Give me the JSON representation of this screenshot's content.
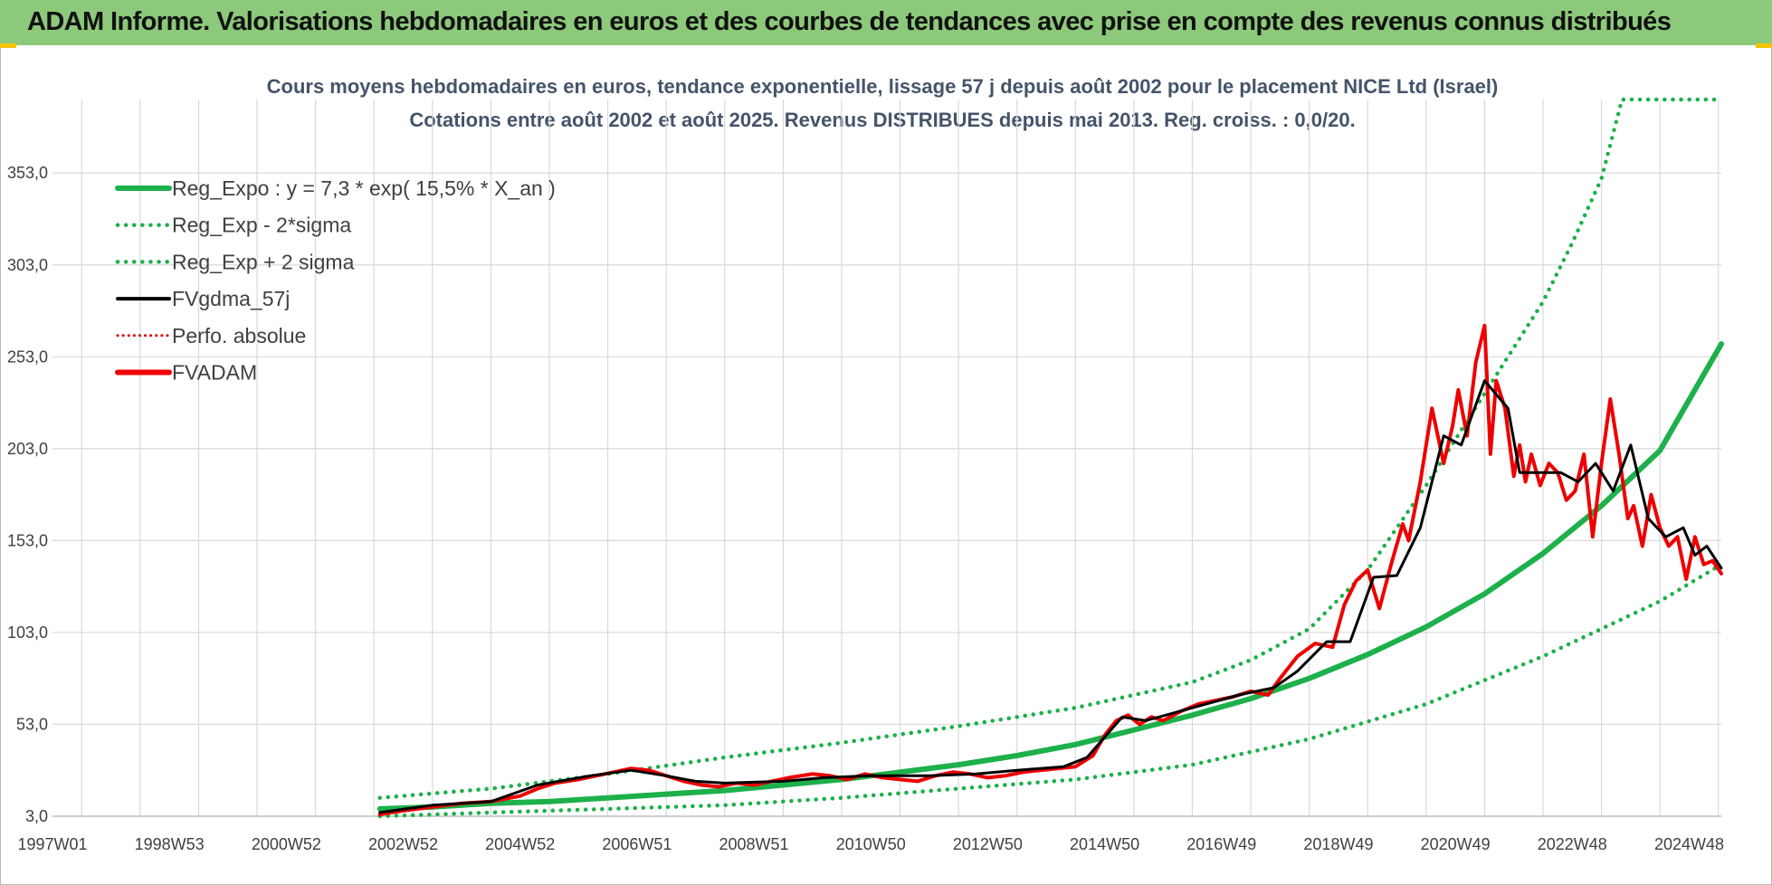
{
  "header": {
    "banner_text": "ADAM Informe. Valorisations hebdomadaires en euros et des courbes de tendances avec prise en compte des revenus connus distribués"
  },
  "colors": {
    "banner": "#8cc97a",
    "reg_expo": "#1db04b",
    "sigma_band": "#1db04b",
    "fvgdma": "#000000",
    "perfo": "#e00000",
    "fvadam": "#ee0000",
    "grid": "#d9d9d9"
  },
  "chart_data": {
    "type": "line",
    "title_line1": "Cours moyens hebdomadaires en euros, tendance exponentielle, lissage 57 j depuis août 2002 pour le placement NICE Ltd (Israel)",
    "title_line2": "Cotations entre août 2002 et août 2025. Revenus DISTRIBUES depuis mai 2013. Reg. croiss. : 0,0/20.",
    "ylim": [
      3,
      393
    ],
    "y_ticks": [
      "353,0",
      "303,0",
      "253,0",
      "203,0",
      "153,0",
      "103,0",
      "53,0",
      "3,0"
    ],
    "y_tick_values": [
      353,
      303,
      253,
      203,
      153,
      103,
      53,
      3
    ],
    "xlim": [
      1997.0,
      2025.55
    ],
    "x_ticks": [
      "1997W01",
      "1998W53",
      "2000W52",
      "2002W52",
      "2004W52",
      "2006W51",
      "2008W51",
      "2010W50",
      "2012W50",
      "2014W50",
      "2016W49",
      "2018W49",
      "2020W49",
      "2022W48",
      "2024W48"
    ],
    "x_tick_values": [
      1997.0,
      1999.0,
      2001.0,
      2003.0,
      2005.0,
      2007.0,
      2009.0,
      2011.0,
      2013.0,
      2015.0,
      2017.0,
      2019.0,
      2021.0,
      2023.0,
      2025.0
    ],
    "grid": true,
    "legend_position": "top-left",
    "legend": [
      {
        "label": "Reg_Expo : y = 7,3 * exp( 15,5% *  X_an )",
        "style": "solid-thick",
        "color": "#1db04b"
      },
      {
        "label": "Reg_Exp - 2*sigma",
        "style": "dotted",
        "color": "#1db04b"
      },
      {
        "label": "Reg_Exp + 2 sigma",
        "style": "dotted",
        "color": "#1db04b"
      },
      {
        "label": "FVgdma_57j",
        "style": "solid",
        "color": "#000000"
      },
      {
        "label": "Perfo. absolue",
        "style": "dotted-thin",
        "color": "#e00000"
      },
      {
        "label": "FVADAM",
        "style": "solid-thick",
        "color": "#ee0000"
      }
    ],
    "series": [
      {
        "name": "Reg_Expo : y = 7,3 * exp( 15,5% *  X_an )",
        "x": [
          2002.6,
          2003.5,
          2004.5,
          2005.5,
          2006.5,
          2007.5,
          2008.5,
          2009.5,
          2010.5,
          2011.5,
          2012.5,
          2013.5,
          2014.5,
          2015.5,
          2016.5,
          2017.5,
          2018.5,
          2019.5,
          2020.5,
          2021.5,
          2022.5,
          2023.5,
          2024.5,
          2025.55
        ],
        "y": [
          7,
          8,
          10,
          11,
          13,
          15,
          17,
          20,
          23,
          27,
          31,
          36,
          42,
          50,
          58,
          67,
          78,
          91,
          106,
          124,
          146,
          172,
          202,
          260
        ]
      },
      {
        "name": "Reg_Exp - 2*sigma",
        "x": [
          2002.6,
          2004.5,
          2006.5,
          2008.5,
          2010.5,
          2012.5,
          2014.5,
          2016.5,
          2018.5,
          2020.5,
          2022.5,
          2023.5,
          2024.5,
          2025.55
        ],
        "y": [
          3,
          5,
          7,
          9,
          13,
          18,
          23,
          31,
          45,
          64,
          90,
          105,
          120,
          140
        ]
      },
      {
        "name": "Reg_Exp + 2 sigma",
        "x": [
          2002.6,
          2004.5,
          2006.5,
          2008.5,
          2010.5,
          2012.5,
          2014.5,
          2016.5,
          2017.5,
          2018.5,
          2019.5,
          2020.5,
          2021.5,
          2022.5,
          2023.0,
          2023.5,
          2023.85,
          2025.55
        ],
        "y": [
          13,
          18,
          26,
          35,
          43,
          52,
          62,
          76,
          88,
          105,
          137,
          183,
          233,
          283,
          315,
          350,
          393,
          393
        ]
      },
      {
        "name": "FVgdma_57j",
        "x": [
          2002.6,
          2003.5,
          2004.5,
          2005.3,
          2006.2,
          2006.9,
          2007.5,
          2008.0,
          2008.5,
          2009.5,
          2010.2,
          2011.0,
          2012.0,
          2012.8,
          2013.5,
          2014.3,
          2014.7,
          2015.3,
          2015.7,
          2016.5,
          2017.3,
          2017.9,
          2018.3,
          2018.8,
          2019.2,
          2019.6,
          2020.0,
          2020.4,
          2020.8,
          2021.1,
          2021.5,
          2021.9,
          2022.1,
          2022.5,
          2022.8,
          2023.1,
          2023.4,
          2023.7,
          2024.0,
          2024.3,
          2024.6,
          2024.9,
          2025.1,
          2025.3,
          2025.55
        ],
        "y": [
          5,
          9,
          11,
          20,
          25,
          28,
          25,
          22,
          21,
          22,
          24,
          25,
          25,
          26,
          28,
          30,
          35,
          57,
          55,
          62,
          69,
          73,
          82,
          98,
          98,
          133,
          134,
          160,
          210,
          205,
          240,
          225,
          190,
          190,
          190,
          185,
          195,
          180,
          205,
          165,
          155,
          160,
          145,
          150,
          138
        ]
      },
      {
        "name": "FVADAM",
        "x": [
          2002.6,
          2003.0,
          2003.5,
          2004.0,
          2004.5,
          2005.0,
          2005.3,
          2005.6,
          2006.0,
          2006.3,
          2006.6,
          2006.9,
          2007.2,
          2007.5,
          2007.8,
          2008.1,
          2008.4,
          2008.7,
          2009.0,
          2009.3,
          2009.6,
          2010.0,
          2010.3,
          2010.6,
          2010.9,
          2011.2,
          2011.5,
          2011.8,
          2012.1,
          2012.4,
          2012.7,
          2013.0,
          2013.3,
          2013.6,
          2013.9,
          2014.2,
          2014.5,
          2014.8,
          2015.0,
          2015.2,
          2015.4,
          2015.6,
          2015.8,
          2016.0,
          2016.3,
          2016.6,
          2016.9,
          2017.2,
          2017.5,
          2017.8,
          2018.0,
          2018.3,
          2018.6,
          2018.9,
          2019.1,
          2019.3,
          2019.5,
          2019.7,
          2019.9,
          2020.1,
          2020.2,
          2020.4,
          2020.6,
          2020.8,
          2020.95,
          2021.05,
          2021.2,
          2021.35,
          2021.5,
          2021.6,
          2021.7,
          2021.85,
          2022.0,
          2022.1,
          2022.2,
          2022.3,
          2022.45,
          2022.6,
          2022.75,
          2022.9,
          2023.05,
          2023.2,
          2023.35,
          2023.5,
          2023.65,
          2023.8,
          2023.95,
          2024.05,
          2024.2,
          2024.35,
          2024.5,
          2024.65,
          2024.8,
          2024.95,
          2025.1,
          2025.25,
          2025.4,
          2025.55
        ],
        "y": [
          4,
          6,
          8,
          10,
          11,
          14,
          18,
          21,
          23,
          25,
          27,
          29,
          28,
          25,
          22,
          20,
          19,
          21,
          20,
          22,
          24,
          26,
          25,
          23,
          26,
          24,
          23,
          22,
          25,
          27,
          26,
          24,
          25,
          27,
          28,
          29,
          30,
          36,
          47,
          55,
          58,
          53,
          57,
          55,
          60,
          64,
          66,
          68,
          71,
          69,
          78,
          90,
          97,
          95,
          118,
          131,
          137,
          116,
          140,
          162,
          153,
          185,
          225,
          195,
          215,
          235,
          210,
          250,
          270,
          200,
          240,
          225,
          188,
          205,
          185,
          200,
          183,
          195,
          190,
          175,
          180,
          200,
          155,
          195,
          230,
          200,
          165,
          172,
          150,
          178,
          160,
          150,
          155,
          132,
          155,
          140,
          142,
          135
        ]
      }
    ]
  }
}
